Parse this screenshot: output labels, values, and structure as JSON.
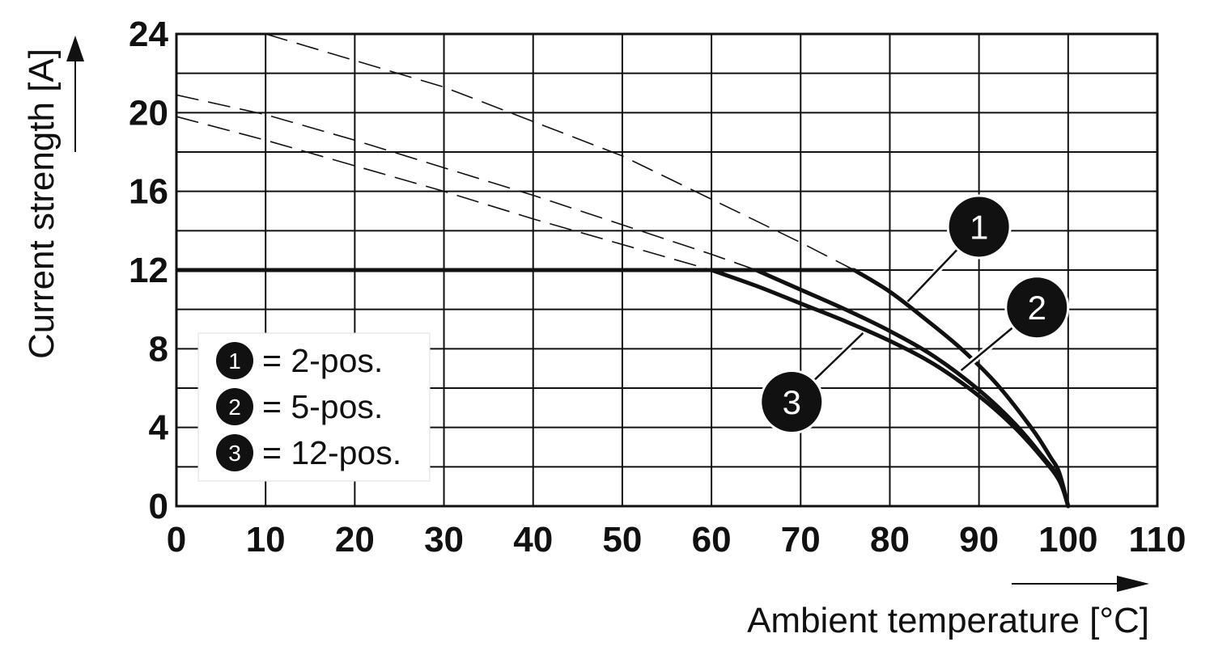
{
  "chart_data": {
    "type": "line",
    "xlabel": "Ambient temperature [°C]",
    "ylabel": "Current strength [A]",
    "xlim": [
      0,
      110
    ],
    "ylim": [
      0,
      24
    ],
    "xticks": [
      "0",
      "10",
      "20",
      "30",
      "40",
      "50",
      "60",
      "70",
      "80",
      "90",
      "100",
      "110"
    ],
    "yticks": [
      "0",
      "4",
      "8",
      "12",
      "16",
      "20",
      "24"
    ],
    "x_grid_step": 10,
    "y_grid_step": 2,
    "grid": true,
    "limit_line": {
      "value": 12,
      "x": [
        0,
        76
      ]
    },
    "series": [
      {
        "name": "2-pos.",
        "label": "1",
        "x": [
          76,
          80,
          84,
          88,
          92,
          96,
          98,
          99,
          100
        ],
        "y": [
          12,
          10.9,
          9.5,
          8.0,
          6.2,
          3.9,
          2.5,
          1.7,
          0
        ]
      },
      {
        "name": "5-pos.",
        "label": "2",
        "x": [
          65,
          70,
          75,
          80,
          85,
          90,
          94,
          97,
          99,
          100
        ],
        "y": [
          12,
          11.0,
          10.0,
          8.9,
          7.6,
          5.9,
          4.2,
          2.6,
          1.4,
          0
        ]
      },
      {
        "name": "12-pos.",
        "label": "3",
        "x": [
          60,
          65,
          70,
          75,
          80,
          85,
          90,
          94,
          97,
          99,
          100
        ],
        "y": [
          12,
          11.2,
          10.3,
          9.4,
          8.4,
          7.2,
          5.6,
          4.0,
          2.5,
          1.3,
          0
        ]
      }
    ],
    "dashed_extensions": [
      {
        "series": "2-pos.",
        "x": [
          10,
          30,
          50,
          60,
          70,
          76
        ],
        "y": [
          24,
          21.3,
          17.8,
          15.6,
          13.4,
          12
        ]
      },
      {
        "series": "5-pos.",
        "x": [
          0,
          10,
          20,
          30,
          40,
          50,
          60,
          65
        ],
        "y": [
          20.9,
          19.9,
          18.6,
          17.2,
          15.8,
          14.3,
          12.8,
          12
        ]
      },
      {
        "series": "12-pos.",
        "x": [
          0,
          10,
          20,
          30,
          40,
          50,
          60
        ],
        "y": [
          19.8,
          18.6,
          17.3,
          16.0,
          14.6,
          13.3,
          12
        ]
      }
    ],
    "legend": {
      "position": "bottom-left",
      "entries": [
        {
          "label": "1",
          "text": "= 2-pos."
        },
        {
          "label": "2",
          "text": "= 5-pos."
        },
        {
          "label": "3",
          "text": "= 12-pos."
        }
      ]
    },
    "callouts": [
      {
        "label": "1",
        "series": "2-pos.",
        "anchor": [
          82,
          10.4
        ],
        "badge": [
          90,
          14.2
        ]
      },
      {
        "label": "2",
        "series": "5-pos.",
        "anchor": [
          88,
          6.9
        ],
        "badge": [
          96.5,
          10.1
        ]
      },
      {
        "label": "3",
        "series": "12-pos.",
        "anchor": [
          77,
          8.8
        ],
        "badge": [
          69,
          5.3
        ]
      }
    ],
    "colors": {
      "line": "#111111",
      "grid": "#111111",
      "badge": "#111111",
      "badge_text": "#ffffff"
    }
  }
}
